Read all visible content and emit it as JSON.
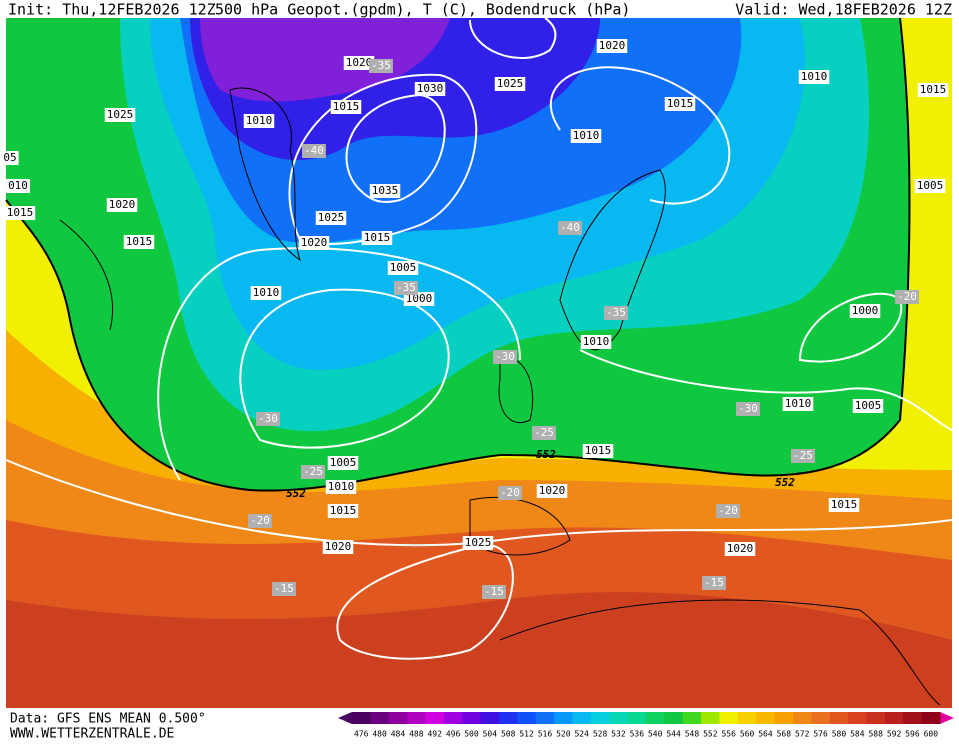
{
  "header": {
    "init": "Init: Thu,12FEB2026 12Z",
    "title": "500 hPa Geopot.(gpdm), T (C), Bodendruck (hPa)",
    "valid": "Valid: Wed,18FEB2026 12Z"
  },
  "footer": {
    "source": "Data: GFS ENS MEAN 0.500°",
    "website": "WWW.WETTERZENTRALE.DE"
  },
  "isobar_labels": [
    "1020",
    "1020",
    "1010",
    "1015",
    "1025",
    "1025",
    "1030",
    "1015",
    "1015",
    "1010",
    "1010",
    "05",
    "1005",
    "010",
    "1035",
    "1020",
    "1015",
    "1025",
    "1015",
    "1020",
    "1015",
    "1005",
    "1010",
    "1000",
    "1000",
    "1010",
    "1010",
    "1005",
    "1015",
    "1005",
    "1010",
    "1020",
    "1015",
    "1015",
    "1020",
    "1025",
    "1020"
  ],
  "temperature_labels": [
    "-35",
    "-40",
    "-40",
    "-35",
    "-35",
    "-30",
    "-30",
    "-30",
    "-25",
    "-25",
    "-25",
    "-20",
    "-20",
    "-20",
    "-20",
    "-15",
    "-15",
    "-15"
  ],
  "contour_552_labels": [
    "552",
    "552",
    "552"
  ],
  "colorbar": {
    "labels": [
      476,
      480,
      484,
      488,
      492,
      496,
      500,
      504,
      508,
      512,
      516,
      520,
      524,
      528,
      532,
      536,
      540,
      544,
      548,
      552,
      556,
      560,
      564,
      568,
      572,
      576,
      580,
      584,
      588,
      592,
      596,
      600
    ],
    "colors": [
      "#4a0060",
      "#6a0080",
      "#9000a0",
      "#b000c0",
      "#d000e0",
      "#a000e0",
      "#7000e0",
      "#4010e0",
      "#2030f0",
      "#1050f8",
      "#1070f8",
      "#0898f8",
      "#08b8f0",
      "#08d0e0",
      "#08d8b8",
      "#08d890",
      "#10d060",
      "#10c840",
      "#40d820",
      "#a0e800",
      "#f0f000",
      "#f8d000",
      "#f8b800",
      "#f8a000",
      "#f08818",
      "#e87020",
      "#e05820",
      "#d84020",
      "#c83020",
      "#b82020",
      "#a01018",
      "#900018"
    ]
  }
}
